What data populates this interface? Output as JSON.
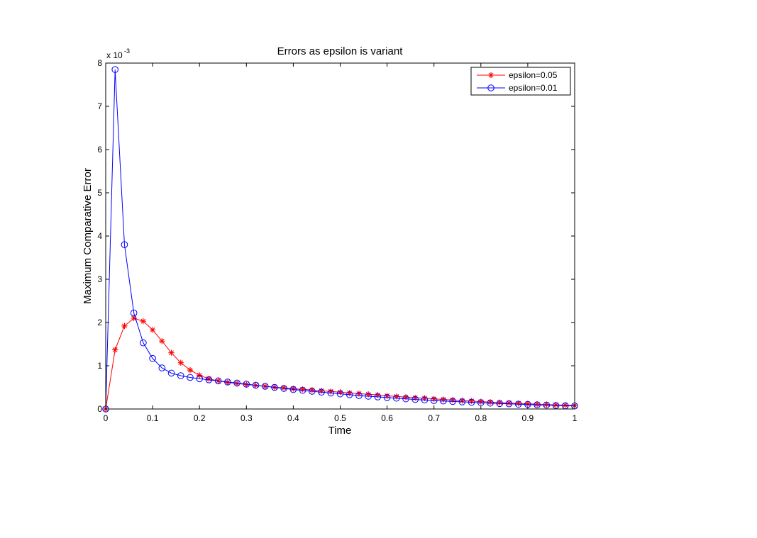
{
  "chart_data": {
    "type": "line",
    "title": "Errors as epsilon is variant",
    "xlabel": "Time",
    "ylabel": "Maximum Comparative Error",
    "y_multiplier_label": "x 10",
    "y_multiplier_exponent": "-3",
    "xlim": [
      0,
      1
    ],
    "ylim": [
      0,
      8
    ],
    "xticks": [
      0,
      0.1,
      0.2,
      0.3,
      0.4,
      0.5,
      0.6,
      0.7,
      0.8,
      0.9,
      1
    ],
    "xtick_labels": [
      "0",
      "0.1",
      "0.2",
      "0.3",
      "0.4",
      "0.5",
      "0.6",
      "0.7",
      "0.8",
      "0.9",
      "1"
    ],
    "yticks": [
      0,
      1,
      2,
      3,
      4,
      5,
      6,
      7,
      8
    ],
    "ytick_labels": [
      "0",
      "1",
      "2",
      "3",
      "4",
      "5",
      "6",
      "7",
      "8"
    ],
    "grid": false,
    "legend_position": "top-right",
    "x": [
      0,
      0.02,
      0.04,
      0.06,
      0.08,
      0.1,
      0.12,
      0.14,
      0.16,
      0.18,
      0.2,
      0.22,
      0.24,
      0.26,
      0.28,
      0.3,
      0.32,
      0.34,
      0.36,
      0.38,
      0.4,
      0.42,
      0.44,
      0.46,
      0.48,
      0.5,
      0.52,
      0.54,
      0.56,
      0.58,
      0.6,
      0.62,
      0.64,
      0.66,
      0.68,
      0.7,
      0.72,
      0.74,
      0.76,
      0.78,
      0.8,
      0.82,
      0.84,
      0.86,
      0.88,
      0.9,
      0.92,
      0.94,
      0.96,
      0.98,
      1
    ],
    "series": [
      {
        "name": "epsilon=0.05",
        "color": "#ff0000",
        "marker": "asterisk",
        "values": [
          0,
          1.37,
          1.92,
          2.1,
          2.03,
          1.83,
          1.57,
          1.3,
          1.07,
          0.9,
          0.78,
          0.7,
          0.65,
          0.615,
          0.59,
          0.565,
          0.545,
          0.525,
          0.505,
          0.49,
          0.47,
          0.455,
          0.44,
          0.42,
          0.405,
          0.39,
          0.37,
          0.355,
          0.34,
          0.325,
          0.305,
          0.29,
          0.275,
          0.26,
          0.25,
          0.235,
          0.22,
          0.21,
          0.195,
          0.185,
          0.17,
          0.16,
          0.15,
          0.14,
          0.13,
          0.12,
          0.11,
          0.105,
          0.095,
          0.09,
          0.08
        ]
      },
      {
        "name": "epsilon=0.01",
        "color": "#0000ff",
        "marker": "circle",
        "values": [
          0,
          7.85,
          3.8,
          2.22,
          1.53,
          1.17,
          0.95,
          0.83,
          0.77,
          0.73,
          0.7,
          0.675,
          0.65,
          0.625,
          0.6,
          0.575,
          0.55,
          0.525,
          0.5,
          0.475,
          0.45,
          0.43,
          0.41,
          0.39,
          0.37,
          0.35,
          0.33,
          0.31,
          0.295,
          0.28,
          0.265,
          0.25,
          0.235,
          0.22,
          0.21,
          0.195,
          0.185,
          0.175,
          0.165,
          0.155,
          0.145,
          0.135,
          0.125,
          0.12,
          0.11,
          0.105,
          0.095,
          0.09,
          0.08,
          0.075,
          0.07
        ]
      }
    ]
  }
}
